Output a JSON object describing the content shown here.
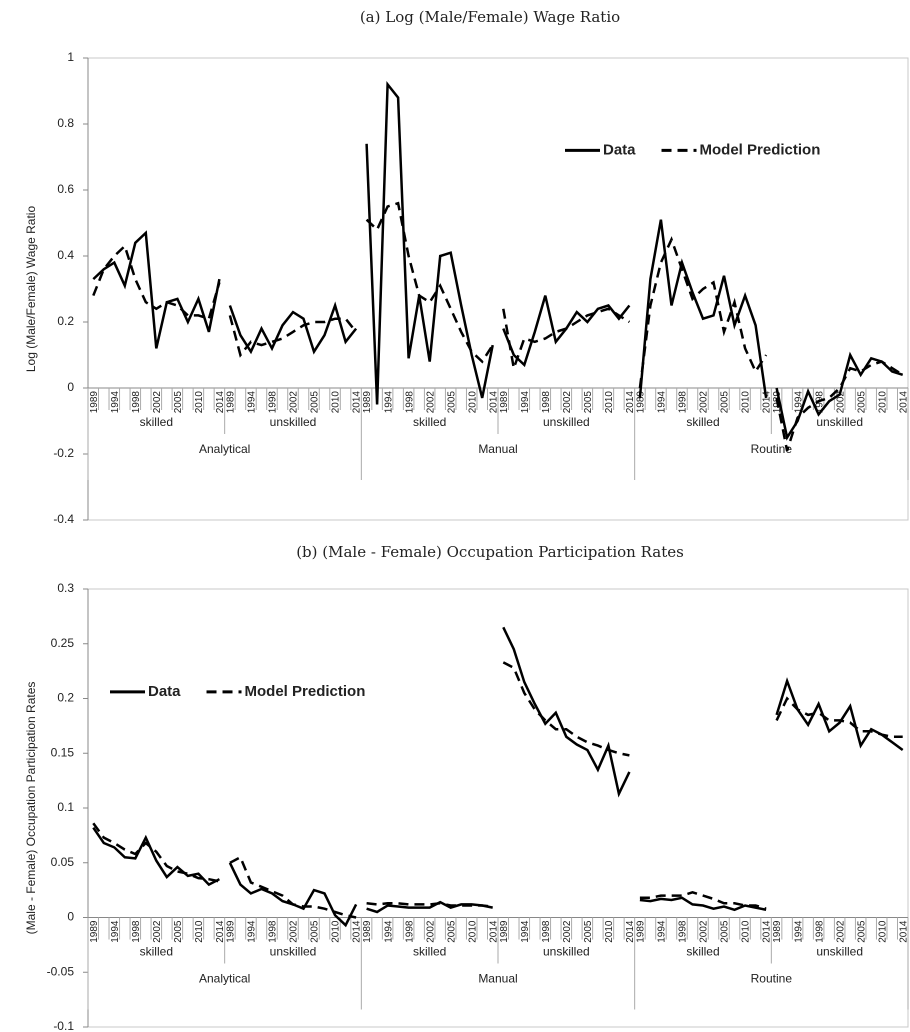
{
  "chart_data": [
    {
      "type": "line",
      "title": "(a) Log (Male/Female) Wage Ratio",
      "y_label": "Log (Male/Female) Wage Ratio",
      "ylim": [
        -0.4,
        1
      ],
      "yticks": [
        -0.4,
        -0.2,
        0,
        0.2,
        0.4,
        0.6,
        0.8,
        1
      ],
      "legend": "upper right",
      "groups": [
        {
          "occupation": "Analytical",
          "skills": [
            "skilled",
            "unskilled"
          ]
        },
        {
          "occupation": "Manual",
          "skills": [
            "skilled",
            "unskilled"
          ]
        },
        {
          "occupation": "Routine",
          "skills": [
            "skilled",
            "unskilled"
          ]
        }
      ],
      "categories": [
        "1989",
        null,
        "1994",
        null,
        "1998",
        null,
        "2002",
        null,
        "2005",
        null,
        "2010",
        null,
        "2014",
        "1989",
        null,
        "1994",
        null,
        "1998",
        null,
        "2002",
        null,
        "2005",
        null,
        "2010",
        null,
        "2014",
        "1989",
        null,
        "1994",
        null,
        "1998",
        null,
        "2002",
        null,
        "2005",
        null,
        "2010",
        null,
        "2014",
        "1989",
        null,
        "1994",
        null,
        "1998",
        null,
        "2002",
        null,
        "2005",
        null,
        "2010",
        null,
        "2014",
        "1989",
        null,
        "1994",
        null,
        "1998",
        null,
        "2002",
        null,
        "2005",
        null,
        "2010",
        null,
        "2014",
        "1989",
        null,
        "1994",
        null,
        "1998",
        null,
        "2002",
        null,
        "2005",
        null,
        "2010",
        null,
        "2014"
      ],
      "series": [
        {
          "name": "Data",
          "color": "#000000",
          "dashed": false,
          "values": [
            0.33,
            0.36,
            0.38,
            0.31,
            0.44,
            0.47,
            0.12,
            0.26,
            0.27,
            0.2,
            0.27,
            0.17,
            0.33,
            0.25,
            0.16,
            0.11,
            0.18,
            0.12,
            0.19,
            0.23,
            0.21,
            0.11,
            0.16,
            0.25,
            0.14,
            0.18,
            0.74,
            -0.05,
            0.92,
            0.88,
            0.09,
            0.28,
            0.08,
            0.4,
            0.41,
            0.25,
            0.1,
            -0.03,
            0.13,
            0.18,
            0.1,
            0.07,
            0.17,
            0.28,
            0.14,
            0.18,
            0.23,
            0.2,
            0.24,
            0.25,
            0.21,
            0.25,
            -0.03,
            0.33,
            0.51,
            0.25,
            0.38,
            0.29,
            0.21,
            0.22,
            0.34,
            0.19,
            0.28,
            0.19,
            -0.03,
            0.0,
            -0.15,
            -0.1,
            -0.01,
            -0.08,
            -0.04,
            -0.02,
            0.1,
            0.04,
            0.09,
            0.08,
            0.05,
            0.04
          ]
        },
        {
          "name": "Model Prediction",
          "color": "#000000",
          "dashed": true,
          "values": [
            0.28,
            0.36,
            0.4,
            0.43,
            0.33,
            0.26,
            0.24,
            0.26,
            0.25,
            0.22,
            0.22,
            0.21,
            0.32,
            0.22,
            0.1,
            0.14,
            0.13,
            0.14,
            0.15,
            0.17,
            0.19,
            0.2,
            0.2,
            0.21,
            0.21,
            0.17,
            0.51,
            0.48,
            0.55,
            0.56,
            0.4,
            0.28,
            0.26,
            0.31,
            0.24,
            0.17,
            0.11,
            0.08,
            0.13,
            0.24,
            0.06,
            0.15,
            0.14,
            0.15,
            0.17,
            0.18,
            0.2,
            0.22,
            0.23,
            0.24,
            0.22,
            0.2,
            0.0,
            0.25,
            0.38,
            0.45,
            0.36,
            0.27,
            0.3,
            0.32,
            0.17,
            0.26,
            0.12,
            0.05,
            0.1,
            -0.03,
            -0.19,
            -0.09,
            -0.06,
            -0.04,
            -0.03,
            0.0,
            0.06,
            0.05,
            0.07,
            0.08,
            0.06,
            0.04
          ]
        }
      ]
    },
    {
      "type": "line",
      "title": "(b) (Male - Female) Occupation Participation Rates",
      "y_label": "(Male - Female) Occupation Participation Rates",
      "ylim": [
        -0.1,
        0.3
      ],
      "yticks": [
        -0.1,
        -0.05,
        0,
        0.05,
        0.1,
        0.15,
        0.2,
        0.25,
        0.3
      ],
      "legend": "upper left",
      "groups": [
        {
          "occupation": "Analytical",
          "skills": [
            "skilled",
            "unskilled"
          ]
        },
        {
          "occupation": "Manual",
          "skills": [
            "skilled",
            "unskilled"
          ]
        },
        {
          "occupation": "Routine",
          "skills": [
            "skilled",
            "unskilled"
          ]
        }
      ],
      "categories": [
        "1989",
        null,
        "1994",
        null,
        "1998",
        null,
        "2002",
        null,
        "2005",
        null,
        "2010",
        null,
        "2014",
        "1989",
        null,
        "1994",
        null,
        "1998",
        null,
        "2002",
        null,
        "2005",
        null,
        "2010",
        null,
        "2014",
        "1989",
        null,
        "1994",
        null,
        "1998",
        null,
        "2002",
        null,
        "2005",
        null,
        "2010",
        null,
        "2014",
        "1989",
        null,
        "1994",
        null,
        "1998",
        null,
        "2002",
        null,
        "2005",
        null,
        "2010",
        null,
        "2014",
        "1989",
        null,
        "1994",
        null,
        "1998",
        null,
        "2002",
        null,
        "2005",
        null,
        "2010",
        null,
        "2014",
        "1989",
        null,
        "1994",
        null,
        "1998",
        null,
        "2002",
        null,
        "2005",
        null,
        "2010",
        null,
        "2014"
      ],
      "series": [
        {
          "name": "Data",
          "color": "#000000",
          "dashed": false,
          "values": [
            0.082,
            0.068,
            0.064,
            0.055,
            0.054,
            0.073,
            0.052,
            0.037,
            0.046,
            0.038,
            0.04,
            0.03,
            0.035,
            0.05,
            0.03,
            0.022,
            0.026,
            0.022,
            0.015,
            0.012,
            0.008,
            0.025,
            0.022,
            0.002,
            -0.007,
            0.012,
            0.008,
            0.005,
            0.011,
            0.01,
            0.009,
            0.009,
            0.009,
            0.014,
            0.009,
            0.012,
            0.012,
            0.011,
            0.009,
            0.265,
            0.245,
            0.215,
            0.195,
            0.177,
            0.187,
            0.165,
            0.158,
            0.153,
            0.135,
            0.157,
            0.113,
            0.133,
            0.016,
            0.015,
            0.017,
            0.016,
            0.018,
            0.012,
            0.011,
            0.008,
            0.01,
            0.007,
            0.011,
            0.009,
            0.007,
            0.185,
            0.216,
            0.19,
            0.176,
            0.195,
            0.17,
            0.178,
            0.193,
            0.157,
            0.172,
            0.167,
            0.16,
            0.153
          ]
        },
        {
          "name": "Model Prediction",
          "color": "#000000",
          "dashed": true,
          "values": [
            0.086,
            0.073,
            0.068,
            0.062,
            0.058,
            0.068,
            0.06,
            0.047,
            0.042,
            0.04,
            0.036,
            0.035,
            0.033,
            0.05,
            0.055,
            0.032,
            0.028,
            0.024,
            0.02,
            0.012,
            0.01,
            0.01,
            0.008,
            0.005,
            0.002,
            0.0,
            0.013,
            0.012,
            0.013,
            0.013,
            0.012,
            0.012,
            0.012,
            0.013,
            0.011,
            0.011,
            0.011,
            0.011,
            0.01,
            0.233,
            0.228,
            0.205,
            0.19,
            0.18,
            0.172,
            0.172,
            0.165,
            0.16,
            0.157,
            0.153,
            0.15,
            0.148,
            0.018,
            0.018,
            0.02,
            0.02,
            0.02,
            0.023,
            0.02,
            0.017,
            0.013,
            0.013,
            0.011,
            0.011,
            0.008,
            0.18,
            0.2,
            0.19,
            0.185,
            0.187,
            0.18,
            0.18,
            0.178,
            0.17,
            0.17,
            0.167,
            0.165,
            0.165
          ]
        }
      ]
    }
  ]
}
